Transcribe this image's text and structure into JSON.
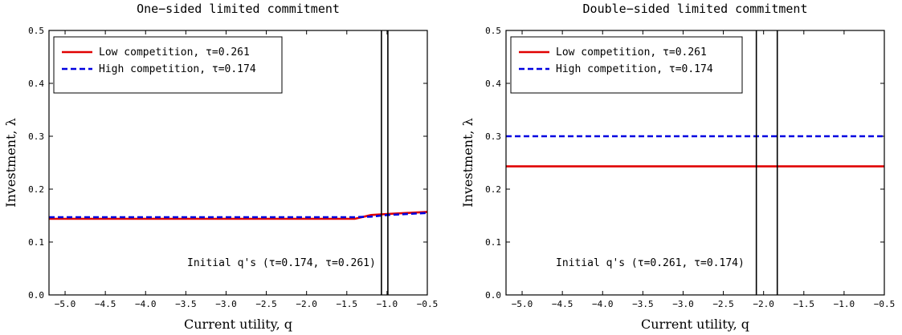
{
  "chart_data": [
    {
      "type": "line",
      "title": "One−sided limited commitment",
      "xlabel": "Current utility, q",
      "ylabel": "Investment, λ",
      "xlim": [
        -5.2,
        -0.5
      ],
      "ylim": [
        0.0,
        0.5
      ],
      "xticks": [
        -5.0,
        -4.5,
        -4.0,
        -3.5,
        -3.0,
        -2.5,
        -2.0,
        -1.5,
        -1.0,
        -0.5
      ],
      "xtick_labels": [
        "−5.0",
        "−4.5",
        "−4.0",
        "−3.5",
        "−3.0",
        "−2.5",
        "−2.0",
        "−1.5",
        "−1.0",
        "−0.5"
      ],
      "yticks": [
        0.0,
        0.1,
        0.2,
        0.3,
        0.4,
        0.5
      ],
      "ytick_labels": [
        "0.0",
        "0.1",
        "0.2",
        "0.3",
        "0.4",
        "0.5"
      ],
      "series": [
        {
          "name": "Low competition, τ=0.261",
          "color": "#e00000",
          "dash": "solid",
          "x": [
            -5.2,
            -1.4,
            -1.2,
            -1.0,
            -0.5
          ],
          "y": [
            0.144,
            0.144,
            0.151,
            0.153,
            0.157
          ]
        },
        {
          "name": "High competition, τ=0.174",
          "color": "#0000e0",
          "dash": "dashed",
          "x": [
            -5.2,
            -1.4,
            -1.2,
            -1.0,
            -0.5
          ],
          "y": [
            0.147,
            0.147,
            0.148,
            0.151,
            0.155
          ]
        }
      ],
      "vlines": [
        -1.07,
        -0.99
      ],
      "legend_position": "top-left",
      "annotation": "Initial q's (τ=0.174, τ=0.261)"
    },
    {
      "type": "line",
      "title": "Double−sided limited commitment",
      "xlabel": "Current utility, q",
      "ylabel": "Investment, λ",
      "xlim": [
        -5.2,
        -0.5
      ],
      "ylim": [
        0.0,
        0.5
      ],
      "xticks": [
        -5.0,
        -4.5,
        -4.0,
        -3.5,
        -3.0,
        -2.5,
        -2.0,
        -1.5,
        -1.0,
        -0.5
      ],
      "xtick_labels": [
        "−5.0",
        "−4.5",
        "−4.0",
        "−3.5",
        "−3.0",
        "−2.5",
        "−2.0",
        "−1.5",
        "−1.0",
        "−0.5"
      ],
      "yticks": [
        0.0,
        0.1,
        0.2,
        0.3,
        0.4,
        0.5
      ],
      "ytick_labels": [
        "0.0",
        "0.1",
        "0.2",
        "0.3",
        "0.4",
        "0.5"
      ],
      "series": [
        {
          "name": "Low competition, τ=0.261",
          "color": "#e00000",
          "dash": "solid",
          "x": [
            -5.2,
            -0.5
          ],
          "y": [
            0.243,
            0.243
          ]
        },
        {
          "name": "High competition, τ=0.174",
          "color": "#0000e0",
          "dash": "dashed",
          "x": [
            -5.2,
            -0.5
          ],
          "y": [
            0.3,
            0.3
          ]
        }
      ],
      "vlines": [
        -2.09,
        -1.83
      ],
      "legend_position": "top-left",
      "annotation": "Initial q's (τ=0.261, τ=0.174)"
    }
  ]
}
